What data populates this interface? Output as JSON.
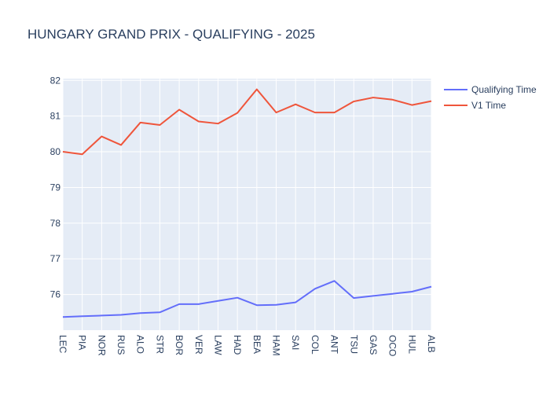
{
  "chart_data": {
    "type": "line",
    "title": "HUNGARY GRAND PRIX - QUALIFYING - 2025",
    "categories": [
      "LEC",
      "PIA",
      "NOR",
      "RUS",
      "ALO",
      "STR",
      "BOR",
      "VER",
      "LAW",
      "HAD",
      "BEA",
      "HAM",
      "SAI",
      "COL",
      "ANT",
      "TSU",
      "GAS",
      "OCO",
      "HUL",
      "ALB"
    ],
    "series": [
      {
        "name": "Qualifying Time",
        "color": "#636efa",
        "values": [
          75.37,
          75.39,
          75.41,
          75.43,
          75.48,
          75.5,
          75.73,
          75.73,
          75.82,
          75.91,
          75.7,
          75.71,
          75.78,
          76.16,
          76.38,
          75.9,
          75.96,
          76.02,
          76.08,
          76.22
        ]
      },
      {
        "name": "V1 Time",
        "color": "#ef553b",
        "values": [
          80.0,
          79.93,
          80.43,
          80.19,
          80.82,
          80.75,
          81.18,
          80.85,
          80.79,
          81.09,
          81.75,
          81.1,
          81.33,
          81.1,
          81.1,
          81.41,
          81.52,
          81.46,
          81.31,
          81.42
        ]
      }
    ],
    "ylim": [
      75.0,
      82.05
    ],
    "yticks": [
      76,
      77,
      78,
      79,
      80,
      81,
      82
    ],
    "grid": true,
    "legend": "top-right",
    "plot_bg": "#e5ecf6",
    "text_color": "#2a3f5f"
  }
}
